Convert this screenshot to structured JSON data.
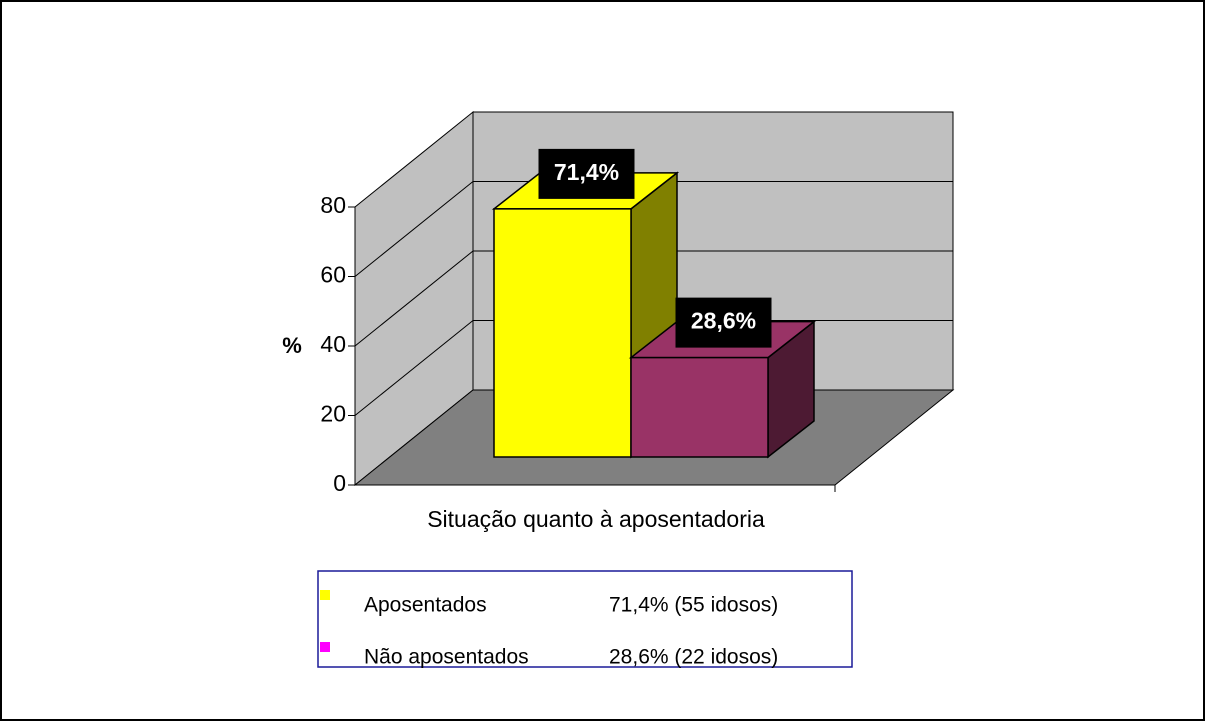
{
  "chart_data": {
    "type": "bar3d",
    "xlabel": "Situação quanto à aposentadoria",
    "ylabel": "%",
    "ylim": [
      0,
      80
    ],
    "yticks": [
      0,
      20,
      40,
      60,
      80
    ],
    "grid": true,
    "series": [
      {
        "name": "Aposentados",
        "color": "#ffff00",
        "side_color": "#808000",
        "legend_color": "#ffff00",
        "values": [
          71.4
        ],
        "value_labels": [
          "71,4%"
        ],
        "legend_detail": "71,4% (55 idosos)"
      },
      {
        "name": "Não aposentados",
        "color": "#993366",
        "side_color": "#4d1a33",
        "legend_color": "#ff00ff",
        "values": [
          28.6
        ],
        "value_labels": [
          "28,6%"
        ],
        "legend_detail": "28,6% (22 idosos)"
      }
    ]
  }
}
